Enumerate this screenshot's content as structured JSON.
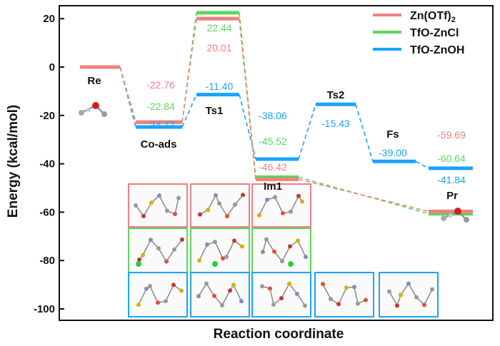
{
  "chart_data": {
    "type": "line",
    "title": "",
    "xlabel": "Reaction coordinate",
    "ylabel": "Energy (kcal/mol)",
    "ylim": [
      -104,
      27
    ],
    "yticks": [
      20,
      0,
      -20,
      -40,
      -60,
      -80,
      -100
    ],
    "states": [
      "Re",
      "Co-ads",
      "Ts1",
      "Im1",
      "Ts2",
      "Fs",
      "Pr"
    ],
    "series": [
      {
        "name": "Zn(OTf)2",
        "color": "#f08080",
        "values": [
          0,
          -22.76,
          20.01,
          -46.42,
          null,
          null,
          -59.69
        ]
      },
      {
        "name": "TfO-ZnCl",
        "color": "#5cd65c",
        "values": [
          0,
          -22.84,
          22.44,
          -45.52,
          null,
          null,
          -60.64
        ]
      },
      {
        "name": "TfO-ZnOH",
        "color": "#1aa3ff",
        "values": [
          0,
          -24.77,
          -11.4,
          -38.06,
          -15.43,
          -39.0,
          -41.84
        ]
      }
    ],
    "value_labels": {
      "Zn(OTf)2": [
        "",
        "-22.76",
        "20.01",
        "-46.42",
        "",
        "",
        "-59.69"
      ],
      "TfO-ZnCl": [
        "",
        "-22.84",
        "22.44",
        "-45.52",
        "",
        "",
        "-60.64"
      ],
      "TfO-ZnOH": [
        "",
        "-24.77",
        "-11.40",
        "-38.06",
        "-15.43",
        "-39.00",
        "-41.84"
      ]
    },
    "legend_position": "top-right",
    "structure_panels": {
      "Zn(OTf)2": [
        "Co-ads",
        "Ts1",
        "Im1"
      ],
      "TfO-ZnCl": [
        "Co-ads",
        "Ts1",
        "Im1"
      ],
      "TfO-ZnOH": [
        "Co-ads",
        "Ts1",
        "Im1",
        "Ts2",
        "Fs"
      ]
    }
  },
  "legend": {
    "zn_otf2_base": "Zn(OTf)",
    "zn_otf2_sub": "2",
    "tfo_zncl": "TfO-ZnCl",
    "tfo_znoh": "TfO-ZnOH"
  }
}
